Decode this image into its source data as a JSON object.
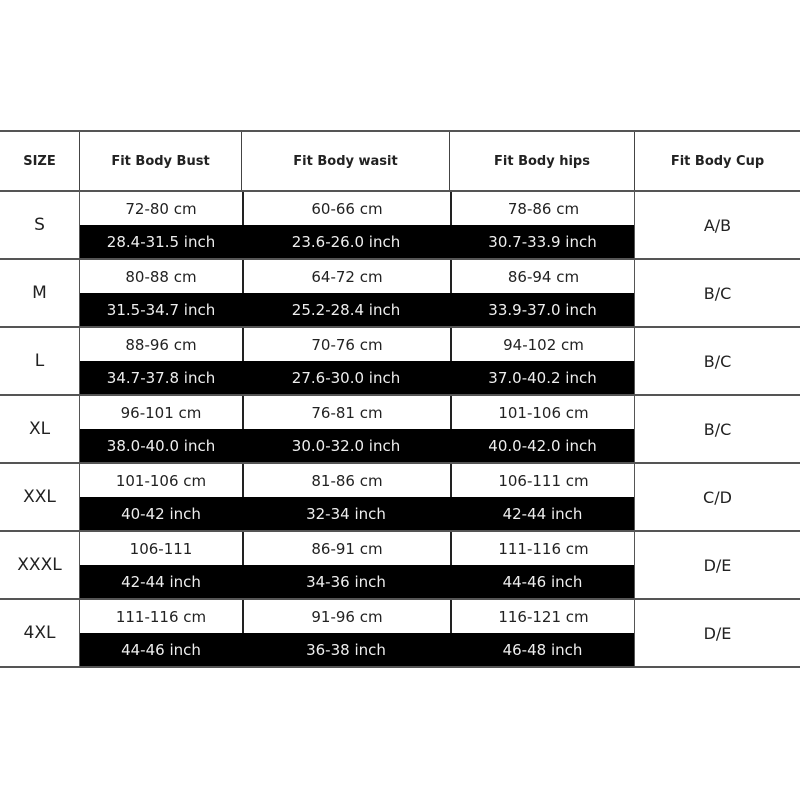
{
  "headers": [
    "SIZE",
    "Fit Body Bust",
    "Fit Body wasit",
    "Fit Body hips",
    "Fit Body Cup"
  ],
  "rows": [
    {
      "size": "S",
      "bust_cm": "72-80 cm",
      "bust_in": "28.4-31.5 inch",
      "waist_cm": "60-66 cm",
      "waist_in": "23.6-26.0 inch",
      "hips_cm": "78-86 cm",
      "hips_in": "30.7-33.9 inch",
      "cup": "A/B"
    },
    {
      "size": "M",
      "bust_cm": "80-88 cm",
      "bust_in": "31.5-34.7 inch",
      "waist_cm": "64-72 cm",
      "waist_in": "25.2-28.4 inch",
      "hips_cm": "86-94 cm",
      "hips_in": "33.9-37.0 inch",
      "cup": "B/C"
    },
    {
      "size": "L",
      "bust_cm": "88-96 cm",
      "bust_in": "34.7-37.8 inch",
      "waist_cm": "70-76 cm",
      "waist_in": "27.6-30.0 inch",
      "hips_cm": "94-102 cm",
      "hips_in": "37.0-40.2 inch",
      "cup": "B/C"
    },
    {
      "size": "XL",
      "bust_cm": "96-101 cm",
      "bust_in": "38.0-40.0 inch",
      "waist_cm": "76-81 cm",
      "waist_in": "30.0-32.0 inch",
      "hips_cm": "101-106 cm",
      "hips_in": "40.0-42.0 inch",
      "cup": "B/C"
    },
    {
      "size": "XXL",
      "bust_cm": "101-106 cm",
      "bust_in": "40-42 inch",
      "waist_cm": "81-86 cm",
      "waist_in": "32-34 inch",
      "hips_cm": "106-111 cm",
      "hips_in": "42-44 inch",
      "cup": "C/D"
    },
    {
      "size": "XXXL",
      "bust_cm": "106-111",
      "bust_in": "42-44 inch",
      "waist_cm": "86-91 cm",
      "waist_in": "34-36 inch",
      "hips_cm": "111-116 cm",
      "hips_in": "44-46 inch",
      "cup": "D/E"
    },
    {
      "size": "4XL",
      "bust_cm": "111-116 cm",
      "bust_in": "44-46 inch",
      "waist_cm": "91-96 cm",
      "waist_in": "36-38 inch",
      "hips_cm": "116-121 cm",
      "hips_in": "46-48 inch",
      "cup": "D/E"
    }
  ]
}
